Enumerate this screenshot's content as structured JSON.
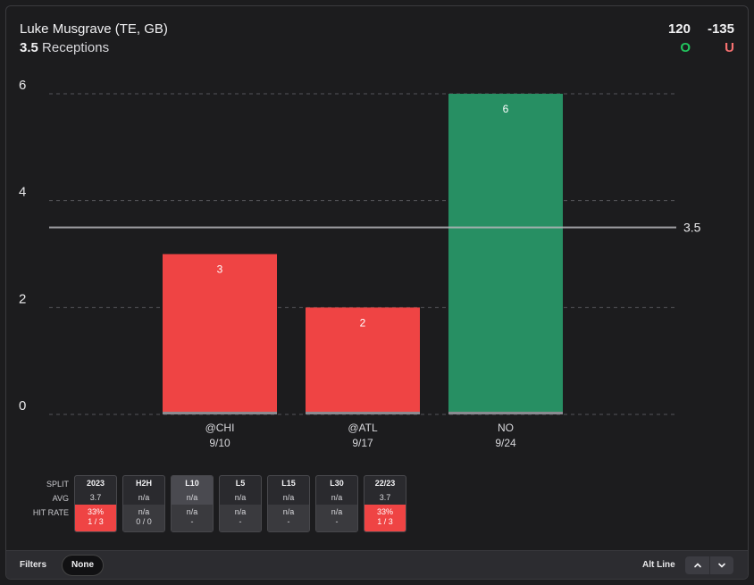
{
  "header": {
    "player": "Luke Musgrave (TE, GB)",
    "line": "3.5",
    "stat": "Receptions",
    "over_odds": "120",
    "under_odds": "-135",
    "over_label": "O",
    "under_label": "U",
    "over_color": "#22c55e",
    "under_color": "#f87171"
  },
  "chart_data": {
    "type": "bar",
    "categories": [
      "@CHI",
      "@ATL",
      "NO"
    ],
    "dates": [
      "9/10",
      "9/17",
      "9/24"
    ],
    "values": [
      3,
      2,
      6
    ],
    "value_labels": [
      "3",
      "2",
      "6"
    ],
    "bar_colors": [
      "#ef4444",
      "#ef4444",
      "#278f63"
    ],
    "y_ticks": [
      0,
      2,
      4,
      6
    ],
    "ylim": [
      0,
      6
    ],
    "threshold": 3.5,
    "threshold_label": "3.5",
    "grid": true
  },
  "splits": {
    "row_labels": [
      "SPLIT",
      "AVG",
      "HIT RATE"
    ],
    "cards": [
      {
        "label": "2023",
        "avg": "3.7",
        "hit": "33%",
        "hit_sub": "1 / 3",
        "red": true,
        "active": false
      },
      {
        "label": "H2H",
        "avg": "n/a",
        "hit": "n/a",
        "hit_sub": "0 / 0",
        "red": false,
        "active": false
      },
      {
        "label": "L10",
        "avg": "n/a",
        "hit": "n/a",
        "hit_sub": "-",
        "red": false,
        "active": true
      },
      {
        "label": "L5",
        "avg": "n/a",
        "hit": "n/a",
        "hit_sub": "-",
        "red": false,
        "active": false
      },
      {
        "label": "L15",
        "avg": "n/a",
        "hit": "n/a",
        "hit_sub": "-",
        "red": false,
        "active": false
      },
      {
        "label": "L30",
        "avg": "n/a",
        "hit": "n/a",
        "hit_sub": "-",
        "red": false,
        "active": false
      },
      {
        "label": "22/23",
        "avg": "3.7",
        "hit": "33%",
        "hit_sub": "1 / 3",
        "red": true,
        "active": false
      }
    ]
  },
  "footer": {
    "filters_label": "Filters",
    "filter_value": "None",
    "alt_line_label": "Alt Line",
    "up_icon": "chevron-up-icon",
    "down_icon": "chevron-down-icon"
  }
}
